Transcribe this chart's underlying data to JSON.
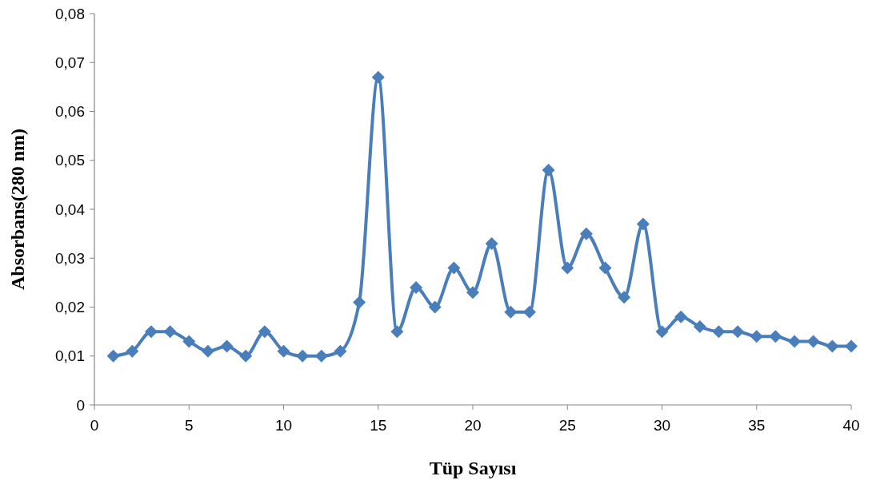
{
  "chart_data": {
    "type": "line",
    "xlabel": "Tüp Sayısı",
    "ylabel": "Absorbans(280 nm)",
    "x": [
      1,
      2,
      3,
      4,
      5,
      6,
      7,
      8,
      9,
      10,
      11,
      12,
      13,
      14,
      15,
      16,
      17,
      18,
      19,
      20,
      21,
      22,
      23,
      24,
      25,
      26,
      27,
      28,
      29,
      30,
      31,
      32,
      33,
      34,
      35,
      36,
      37,
      38,
      39,
      40
    ],
    "series": [
      {
        "color": "#4a7ebb",
        "values": [
          0.01,
          0.011,
          0.015,
          0.015,
          0.013,
          0.011,
          0.012,
          0.01,
          0.015,
          0.011,
          0.01,
          0.01,
          0.011,
          0.021,
          0.067,
          0.015,
          0.024,
          0.02,
          0.028,
          0.023,
          0.033,
          0.019,
          0.019,
          0.048,
          0.028,
          0.035,
          0.028,
          0.022,
          0.037,
          0.015,
          0.018,
          0.016,
          0.015,
          0.015,
          0.014,
          0.014,
          0.013,
          0.013,
          0.012,
          0.012
        ]
      }
    ],
    "xlim": [
      0,
      40
    ],
    "xticks": [
      0,
      5,
      10,
      15,
      20,
      25,
      30,
      35,
      40
    ],
    "ylim": [
      0,
      0.08
    ],
    "yticks": [
      0,
      {
        "value": 0.01,
        "label": "0,01"
      },
      {
        "value": 0.02,
        "label": "0,02"
      },
      {
        "value": 0.03,
        "label": "0,03"
      },
      {
        "value": 0.04,
        "label": "0,04"
      },
      {
        "value": 0.05,
        "label": "0,05"
      },
      {
        "value": 0.06,
        "label": "0,06"
      },
      {
        "value": 0.07,
        "label": "0,07"
      },
      {
        "value": 0.08,
        "label": "0,08"
      }
    ],
    "grid": false,
    "marker": "diamond",
    "line_style": "solid"
  }
}
